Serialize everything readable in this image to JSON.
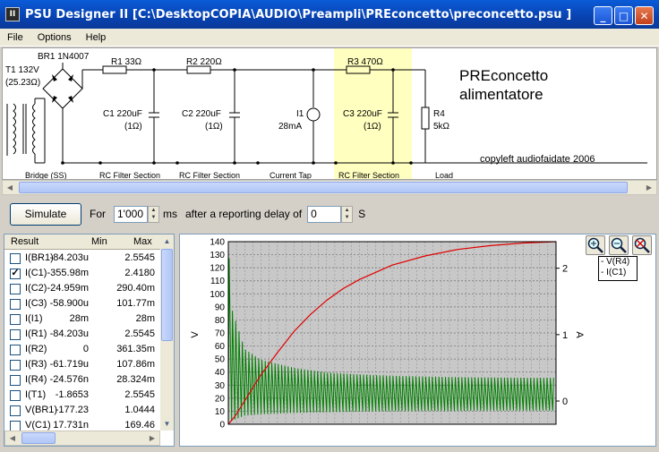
{
  "window": {
    "title": "PSU Designer II  [C:\\DesktopCOPIA\\AUDIO\\Preampli\\PREconcetto\\preconcetto.psu ]",
    "app_icon_text": "II",
    "minimize_glyph": "_",
    "maximize_glyph": "□",
    "close_glyph": "✕"
  },
  "menu": {
    "file": "File",
    "options": "Options",
    "help": "Help"
  },
  "schematic": {
    "transformer_label": "T1 132V",
    "transformer_current": "(25.23Ω)",
    "bridge_label": "BR1 1N4007",
    "r1": "R1 33Ω",
    "r2": "R2 220Ω",
    "r3": "R3 470Ω",
    "c1": "C1 220uF",
    "c1_esr": "(1Ω)",
    "c2": "C2 220uF",
    "c2_esr": "(1Ω)",
    "c3": "C3 220uF",
    "c3_esr": "(1Ω)",
    "i1": "I1",
    "i1_value": "28mA",
    "r4": "R4",
    "r4_value": "5kΩ",
    "project_title_1": "PREconcetto",
    "project_title_2": "alimentatore",
    "copyleft": "copyleft audiofaidate 2006",
    "sections": {
      "bridge": "Bridge (SS)",
      "rc1": "RC Filter Section",
      "rc2": "RC Filter Section",
      "tap": "Current Tap",
      "rc3": "RC Filter Section",
      "load": "Load"
    }
  },
  "simulation": {
    "simulate_label": "Simulate",
    "for_label": "For",
    "duration_value": "1'000",
    "ms_label": "ms",
    "delay_label": "after a reporting delay of",
    "delay_value": "0",
    "s_label": "S"
  },
  "results": {
    "headers": {
      "result": "Result",
      "min": "Min",
      "max": "Max"
    },
    "rows": [
      {
        "name": "I(BR1)",
        "min": "-84.203u",
        "max": "2.5545",
        "checked": false
      },
      {
        "name": "I(C1)",
        "min": "-355.98m",
        "max": "2.4180",
        "checked": true
      },
      {
        "name": "I(C2)",
        "min": "-24.959m",
        "max": "290.40m",
        "checked": false
      },
      {
        "name": "I(C3)",
        "min": "-58.900u",
        "max": "101.77m",
        "checked": false
      },
      {
        "name": "I(I1)",
        "min": "28m",
        "max": "28m",
        "checked": false
      },
      {
        "name": "I(R1)",
        "min": "-84.203u",
        "max": "2.5545",
        "checked": false
      },
      {
        "name": "I(R2)",
        "min": "0",
        "max": "361.35m",
        "checked": false
      },
      {
        "name": "I(R3)",
        "min": "-61.719u",
        "max": "107.86m",
        "checked": false
      },
      {
        "name": "I(R4)",
        "min": "-24.576n",
        "max": "28.324m",
        "checked": false
      },
      {
        "name": "I(T1)",
        "min": "-1.8653",
        "max": "2.5545",
        "checked": false
      },
      {
        "name": "V(BR1)",
        "min": "-177.23",
        "max": "1.0444",
        "checked": false
      },
      {
        "name": "V(C1)",
        "min": "17.731n",
        "max": "169.46",
        "checked": false
      }
    ],
    "check_glyph": "✓",
    "up_glyph": "▲",
    "down_glyph": "▼",
    "left_glyph": "◀",
    "right_glyph": "▶"
  },
  "legend": {
    "v_r4": "- V(R4)",
    "i_c1": "- I(C1)"
  },
  "zoom": {
    "zoom_in": "zoom-in-icon",
    "zoom_out": "zoom-out-icon",
    "zoom_reset": "zoom-reset-icon"
  },
  "chart_data": {
    "type": "line",
    "title": "",
    "xlabel": "",
    "ylabel": "V",
    "y2label": "A",
    "ylim": [
      0,
      140
    ],
    "yticks": [
      0,
      10,
      20,
      30,
      40,
      50,
      60,
      70,
      80,
      90,
      100,
      110,
      120,
      130,
      140
    ],
    "y2lim": [
      -0.35,
      2.4
    ],
    "y2ticks": [
      0,
      1,
      2
    ],
    "xlim": [
      0,
      1
    ],
    "grid": true,
    "legend": "top-right",
    "colors": {
      "v_r4": "#e00000",
      "i_c1": "#008000"
    },
    "series": [
      {
        "name": "V(R4)",
        "axis": "left",
        "x": [
          0,
          0.02,
          0.05,
          0.1,
          0.15,
          0.2,
          0.25,
          0.3,
          0.35,
          0.4,
          0.5,
          0.6,
          0.7,
          0.8,
          0.9,
          1.0
        ],
        "values": [
          0,
          6,
          18,
          38,
          55,
          71,
          84,
          95,
          104,
          111,
          122,
          129,
          134,
          137,
          139,
          140
        ]
      },
      {
        "name": "I(C1)",
        "axis": "right",
        "x": [
          0,
          0.01,
          0.05,
          0.1,
          0.2,
          0.3,
          0.4,
          0.5,
          0.6,
          0.7,
          0.8,
          0.9,
          1.0
        ],
        "peak": [
          2.4,
          1.4,
          0.78,
          0.62,
          0.5,
          0.43,
          0.4,
          0.38,
          0.37,
          0.36,
          0.355,
          0.35,
          0.35
        ],
        "trough": [
          -0.35,
          -0.3,
          -0.22,
          -0.2,
          -0.18,
          -0.17,
          -0.16,
          -0.155,
          -0.15,
          -0.15,
          -0.145,
          -0.145,
          -0.145
        ]
      }
    ]
  }
}
